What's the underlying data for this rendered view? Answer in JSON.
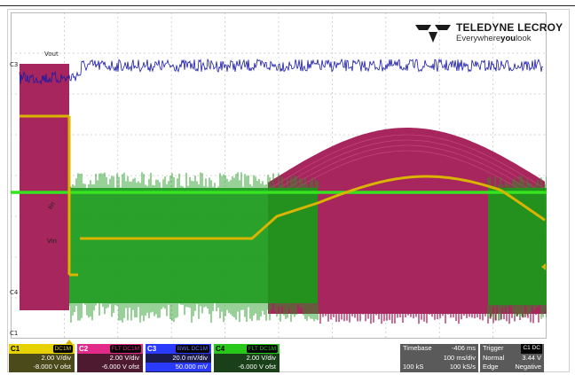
{
  "brand": {
    "name": "TELEDYNE LECROY",
    "tagline_pre": "Everywhere",
    "tagline_bold": "you",
    "tagline_post": "look"
  },
  "labels": {
    "c3": "C3",
    "c4": "C4",
    "c1": "C1",
    "vout": "Vout",
    "iin": "Iin",
    "vin": "Vin"
  },
  "channels": [
    {
      "name": "C1",
      "coupling": "DC1M",
      "vdiv": "2.00 V/div",
      "offset": "-8.000 V ofst",
      "color": "#e6d200"
    },
    {
      "name": "C2",
      "coupling": "DC1M",
      "coupling_prefix": "FLT",
      "vdiv": "2.00 V/div",
      "offset": "-6.000 V ofst",
      "color": "#c8186e"
    },
    {
      "name": "C3",
      "coupling": "DC1M",
      "coupling_prefix": "BWL",
      "vdiv": "20.0 mV/div",
      "offset": "50.000 mV",
      "color": "#2a3aff"
    },
    {
      "name": "C4",
      "coupling": "DC1M",
      "coupling_prefix": "FLT",
      "vdiv": "2.00 V/div",
      "offset": "-6.000 V ofst",
      "color": "#27c81a"
    }
  ],
  "timebase": {
    "label": "Timebase",
    "delay": "-406 ms",
    "per_div": "100 ms/div",
    "samples": "100 kS",
    "rate": "100 kS/s"
  },
  "trigger": {
    "label": "Trigger",
    "channels": "C1 DC",
    "mode": "Normal",
    "level": "3.44 V",
    "type": "Edge",
    "slope": "Negative"
  },
  "colors": {
    "grid": "#c8c8c8",
    "c1_yellow": "#d9b400",
    "c2_magenta": "#a0134f",
    "c3_blue": "#1a1aa8",
    "c4_green": "#1a9a1a"
  }
}
